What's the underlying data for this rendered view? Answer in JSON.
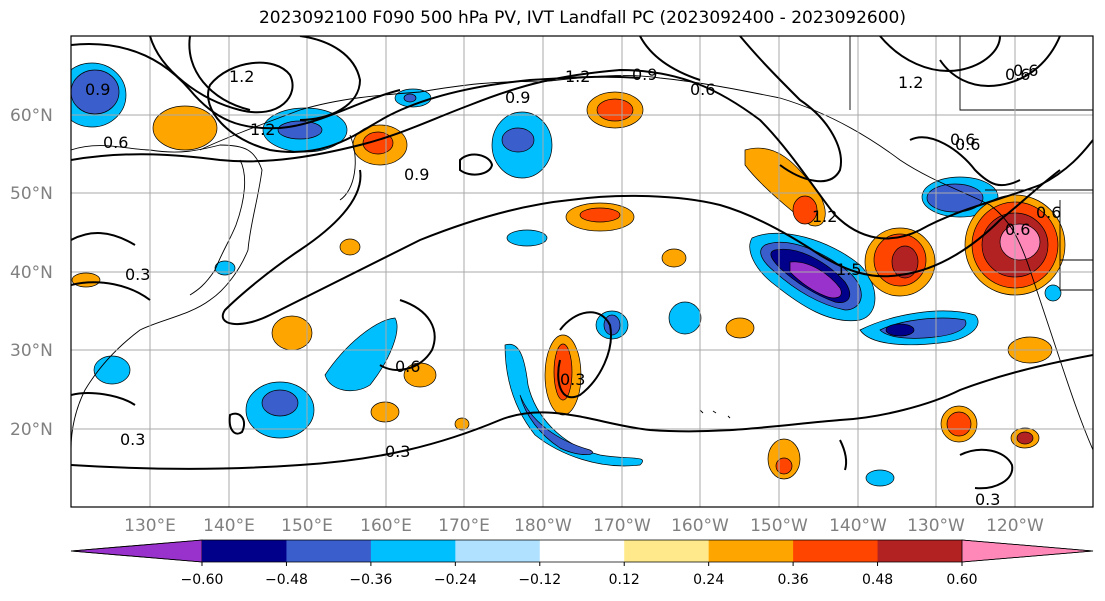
{
  "title": "2023092100 F090 500 hPa PV, IVT Landfall PC (2023092400 - 2023092600)",
  "lat_labels": [
    "60°N",
    "50°N",
    "40°N",
    "30°N",
    "20°N"
  ],
  "lon_labels": [
    "130°E",
    "140°E",
    "150°E",
    "160°E",
    "170°E",
    "180°W",
    "170°W",
    "160°W",
    "150°W",
    "140°W",
    "130°W",
    "120°W"
  ],
  "contour_labels": [
    "1.2",
    "0.9",
    "0.6",
    "1.2",
    "0.9",
    "0.6",
    "1.2",
    "0.6",
    "1.2",
    "0.6",
    "0.9",
    "0.6",
    "1.5",
    "1.2",
    "0.9",
    "0.6",
    "0.6",
    "0.3",
    "0.3",
    "0.3",
    "0.3",
    "0.3",
    "0.6",
    "0.6"
  ],
  "colorbar": {
    "ticks": [
      "−0.60",
      "−0.48",
      "−0.36",
      "−0.24",
      "−0.12",
      "0.12",
      "0.24",
      "0.36",
      "0.48",
      "0.60"
    ],
    "colors": [
      "#9932cc",
      "#00008b",
      "#3a5fcd",
      "#00bfff",
      "#b0e2ff",
      "#ffffff",
      "#ffe98a",
      "#ffa500",
      "#ff4500",
      "#b22222",
      "#ff88b8"
    ]
  }
}
